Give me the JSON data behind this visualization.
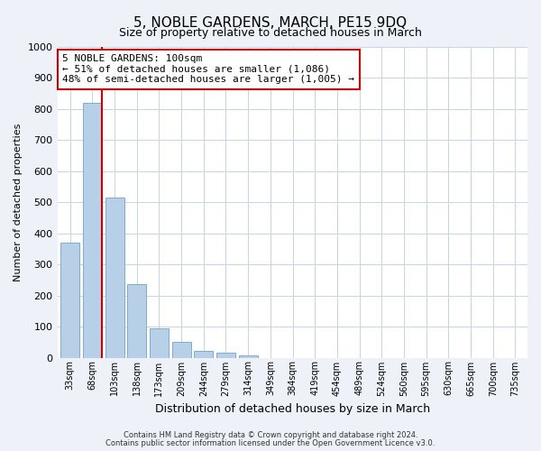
{
  "title": "5, NOBLE GARDENS, MARCH, PE15 9DQ",
  "subtitle": "Size of property relative to detached houses in March",
  "xlabel": "Distribution of detached houses by size in March",
  "ylabel": "Number of detached properties",
  "bar_labels": [
    "33sqm",
    "68sqm",
    "103sqm",
    "138sqm",
    "173sqm",
    "209sqm",
    "244sqm",
    "279sqm",
    "314sqm",
    "349sqm",
    "384sqm",
    "419sqm",
    "454sqm",
    "489sqm",
    "524sqm",
    "560sqm",
    "595sqm",
    "630sqm",
    "665sqm",
    "700sqm",
    "735sqm"
  ],
  "bar_values": [
    370,
    820,
    515,
    235,
    93,
    52,
    22,
    15,
    8,
    0,
    0,
    0,
    0,
    0,
    0,
    0,
    0,
    0,
    0,
    0,
    0
  ],
  "bar_color": "#b8cfe8",
  "bar_edge_color": "#7aadd4",
  "marker_line_color": "#cc0000",
  "annotation_title": "5 NOBLE GARDENS: 100sqm",
  "annotation_line1": "← 51% of detached houses are smaller (1,086)",
  "annotation_line2": "48% of semi-detached houses are larger (1,005) →",
  "annotation_box_color": "#cc0000",
  "ylim": [
    0,
    1000
  ],
  "yticks": [
    0,
    100,
    200,
    300,
    400,
    500,
    600,
    700,
    800,
    900,
    1000
  ],
  "footer1": "Contains HM Land Registry data © Crown copyright and database right 2024.",
  "footer2": "Contains public sector information licensed under the Open Government Licence v3.0.",
  "bg_color": "#eef2f8",
  "plot_bg_color": "#ffffff"
}
